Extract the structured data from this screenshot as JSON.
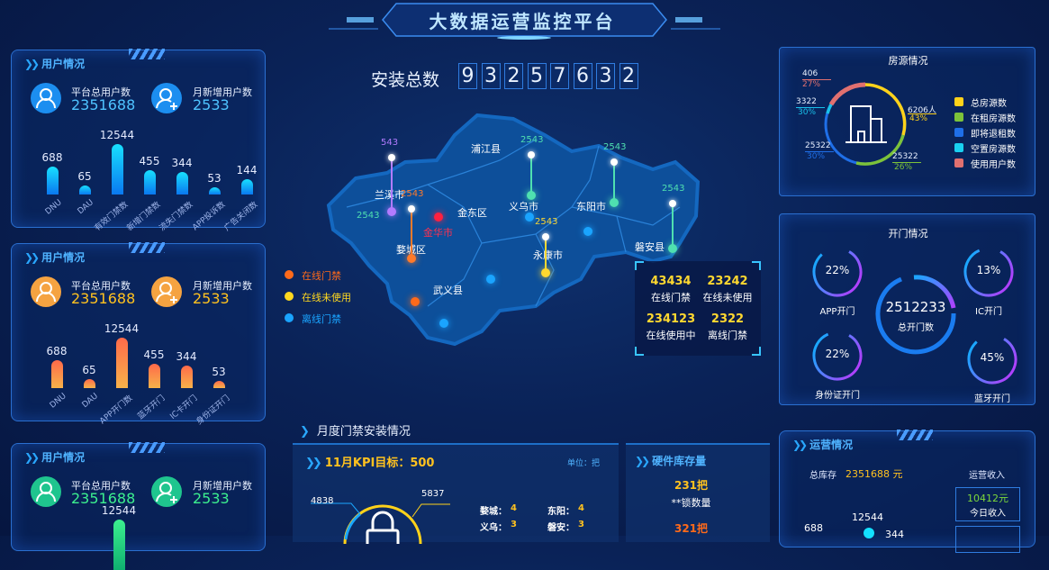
{
  "header": {
    "title": "大数据运营监控平台"
  },
  "install_total": {
    "label": "安装总数",
    "digits": [
      "9",
      "3",
      "2",
      "5",
      "7",
      "6",
      "3",
      "2"
    ]
  },
  "user_panels": [
    {
      "title": "用户情况",
      "total_label": "平台总用户数",
      "total_value": "2351688",
      "new_label": "月新增用户数",
      "new_value": "2533",
      "color": "#1c8ef0",
      "value_color": "#4fc3ff",
      "bars": [
        {
          "cat": "DNU",
          "value": 688
        },
        {
          "cat": "DAU",
          "value": 65
        },
        {
          "cat": "有效门禁数",
          "value": 12544
        },
        {
          "cat": "新增门禁数",
          "value": 455
        },
        {
          "cat": "流失门禁数",
          "value": 344
        },
        {
          "cat": "APP投诉数",
          "value": 53
        },
        {
          "cat": "广告关闭数",
          "value": 144
        }
      ]
    },
    {
      "title": "用户情况",
      "total_label": "平台总用户数",
      "total_value": "2351688",
      "new_label": "月新增用户数",
      "new_value": "2533",
      "color": "#f5a341",
      "value_color": "#ffc21f",
      "bars": [
        {
          "cat": "DNU",
          "value": 688
        },
        {
          "cat": "DAU",
          "value": 65
        },
        {
          "cat": "APP开门数",
          "value": 12544
        },
        {
          "cat": "蓝牙开门",
          "value": 455
        },
        {
          "cat": "IC卡开门",
          "value": 344
        },
        {
          "cat": "身份证开门",
          "value": 53
        }
      ]
    },
    {
      "title": "用户情况",
      "total_label": "平台总用户数",
      "total_value": "2351688",
      "new_label": "月新增用户数",
      "new_value": "2533",
      "color": "#1fc58e",
      "value_color": "#3cf08f",
      "bars": [
        {
          "cat": "",
          "value": 12544
        }
      ]
    }
  ],
  "map": {
    "regions": [
      "浦江县",
      "兰溪市",
      "金东区",
      "义乌市",
      "东阳市",
      "金华市",
      "婺城区",
      "永康市",
      "磐安县",
      "武义县"
    ],
    "pins": [
      {
        "value": "543",
        "color": "#b27bff"
      },
      {
        "value": "2543",
        "color": "#ff7a2a"
      },
      {
        "value": "2543",
        "color": "#4fe0b0"
      },
      {
        "value": "2543",
        "color": "#4fe0b0"
      },
      {
        "value": "2543",
        "color": "#4fe0b0"
      },
      {
        "value": "2543",
        "color": "#ffd830"
      },
      {
        "value": "2543",
        "color": "#4fe0b0"
      }
    ],
    "legend": [
      {
        "label": "在线门禁",
        "color": "#ff6a1a"
      },
      {
        "label": "在线未使用",
        "color": "#ffd81f"
      },
      {
        "label": "离线门禁",
        "color": "#1aa4ff"
      }
    ],
    "stats": [
      {
        "value": "43434",
        "label": "在线门禁"
      },
      {
        "value": "23242",
        "label": "在线未使用"
      },
      {
        "value": "234123",
        "label": "在线使用中"
      },
      {
        "value": "2322",
        "label": "离线门禁"
      }
    ]
  },
  "housing": {
    "title": "房源情况",
    "callouts": [
      {
        "value": "406",
        "pct": "27%",
        "color": "#e07070"
      },
      {
        "value": "3322",
        "pct": "30%",
        "color": "#19c0ea"
      },
      {
        "value": "25322",
        "pct": "30%",
        "color": "#1f6fe8"
      },
      {
        "value": "25322",
        "pct": "26%",
        "color": "#7cc23a"
      },
      {
        "value": "6206人",
        "pct": "43%",
        "color": "#ffd21a"
      }
    ],
    "legend": [
      {
        "label": "总房源数",
        "color": "#ffd21a"
      },
      {
        "label": "在租房源数",
        "color": "#7cc23a"
      },
      {
        "label": "即将退租数",
        "color": "#1f6fe8"
      },
      {
        "label": "空置房源数",
        "color": "#19d0f0"
      },
      {
        "label": "使用用户数",
        "color": "#e07070"
      }
    ]
  },
  "door": {
    "title": "开门情况",
    "center_value": "2512233",
    "center_label": "总开门数",
    "rings": [
      {
        "pct": "22%",
        "label": "APP开门",
        "fraction": 0.8
      },
      {
        "pct": "13%",
        "label": "IC开门",
        "fraction": 0.85
      },
      {
        "pct": "22%",
        "label": "身份证开门",
        "fraction": 0.85
      },
      {
        "pct": "45%",
        "label": "蓝牙开门",
        "fraction": 0.8
      }
    ]
  },
  "monthly": {
    "heading": "月度门禁安装情况",
    "kpi_title": "11月KPI目标：500",
    "unit": "单位：把",
    "left_value": "4838",
    "right_value": "5837",
    "cities": [
      {
        "name": "婺城：",
        "value": "4"
      },
      {
        "name": "东阳：",
        "value": "4"
      },
      {
        "name": "义乌：",
        "value": "3"
      },
      {
        "name": "磐安：",
        "value": "3"
      }
    ]
  },
  "hardware": {
    "title": "硬件库存量",
    "v1": "231把",
    "l1": "**锁数量",
    "v2": "321把"
  },
  "ops": {
    "title": "运营情况",
    "stock_label": "总库存",
    "stock_value": "2351688 元",
    "income_label": "运营收入",
    "today_value": "10412元",
    "today_label": "今日收入",
    "v688": "688",
    "v12544": "12544",
    "v344": "344"
  }
}
